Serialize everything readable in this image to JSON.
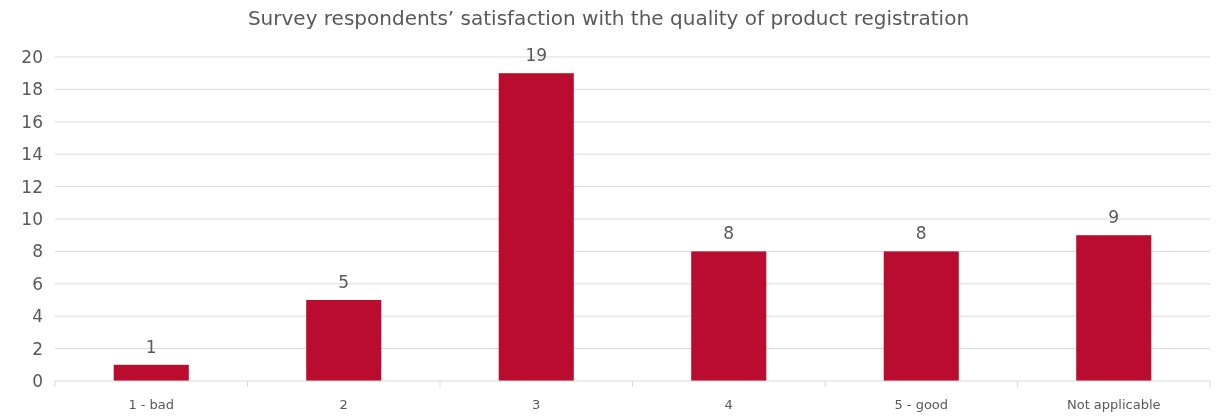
{
  "chart_data": {
    "type": "bar",
    "title": "Survey respondents’ satisfaction with the quality of product registration",
    "categories": [
      "1 - bad",
      "2",
      "3",
      "4",
      "5 - good",
      "Not applicable"
    ],
    "values": [
      1,
      5,
      19,
      8,
      8,
      9
    ],
    "color": "#ba0c2f",
    "ylim": [
      0,
      20
    ],
    "yticks": [
      0,
      2,
      4,
      6,
      8,
      10,
      12,
      14,
      16,
      18,
      20
    ],
    "grid": "y",
    "data_labels": true
  }
}
